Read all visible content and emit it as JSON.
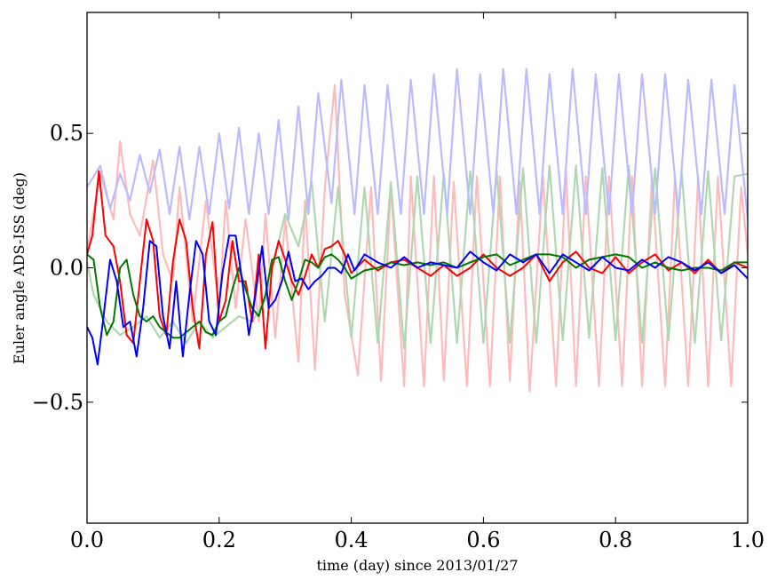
{
  "chart_data": {
    "type": "line",
    "title": "",
    "xlabel": "time (day) since 2013/01/27",
    "ylabel": "Euler angle ADS-ISS (deg)",
    "xlim": [
      0.0,
      1.0
    ],
    "ylim": [
      -0.95,
      0.95
    ],
    "xticks": [
      0.0,
      0.2,
      0.4,
      0.6,
      0.8,
      1.0
    ],
    "xtick_labels": [
      "0.0",
      "0.2",
      "0.4",
      "0.6",
      "0.8",
      "1.0"
    ],
    "yticks": [
      -0.5,
      0.0,
      0.5
    ],
    "ytick_labels": [
      "−0.5",
      "0.0",
      "0.5"
    ],
    "grid": false,
    "legend": "none",
    "series": [
      {
        "color": "#ffbbbb",
        "x": [
          0.0,
          0.02,
          0.04,
          0.05,
          0.065,
          0.08,
          0.1,
          0.115,
          0.13,
          0.14,
          0.16,
          0.18,
          0.2,
          0.21,
          0.225,
          0.24,
          0.26,
          0.27,
          0.285,
          0.3,
          0.32,
          0.33,
          0.345,
          0.36,
          0.375,
          0.39,
          0.41,
          0.43,
          0.445,
          0.46,
          0.48,
          0.49,
          0.51,
          0.525,
          0.54,
          0.555,
          0.575,
          0.59,
          0.61,
          0.625,
          0.64,
          0.655,
          0.67,
          0.69,
          0.71,
          0.725,
          0.74,
          0.755,
          0.775,
          0.79,
          0.81,
          0.825,
          0.84,
          0.855,
          0.875,
          0.89,
          0.91,
          0.925,
          0.94,
          0.955,
          0.975,
          0.99,
          1.0
        ],
        "y": [
          0.06,
          0.35,
          0.18,
          0.47,
          0.2,
          0.12,
          0.4,
          0.05,
          -0.05,
          0.3,
          -0.2,
          0.25,
          -0.15,
          0.25,
          -0.15,
          0.18,
          -0.2,
          0.2,
          -0.26,
          0.18,
          -0.35,
          0.25,
          -0.38,
          0.3,
          0.68,
          -0.1,
          -0.4,
          0.3,
          -0.42,
          0.3,
          -0.44,
          0.34,
          -0.44,
          0.34,
          -0.42,
          0.32,
          -0.44,
          0.34,
          -0.44,
          0.34,
          -0.42,
          0.32,
          -0.46,
          0.34,
          -0.44,
          0.36,
          -0.44,
          0.34,
          -0.44,
          0.34,
          -0.44,
          0.34,
          -0.44,
          0.34,
          -0.44,
          0.34,
          -0.44,
          0.34,
          -0.44,
          0.34,
          -0.44,
          0.3,
          0.05
        ]
      },
      {
        "color": "#b0d8b0",
        "x": [
          0.0,
          0.01,
          0.03,
          0.05,
          0.07,
          0.09,
          0.11,
          0.13,
          0.15,
          0.17,
          0.19,
          0.21,
          0.23,
          0.25,
          0.27,
          0.29,
          0.3,
          0.32,
          0.34,
          0.36,
          0.38,
          0.4,
          0.42,
          0.44,
          0.46,
          0.48,
          0.5,
          0.52,
          0.54,
          0.56,
          0.58,
          0.6,
          0.62,
          0.64,
          0.66,
          0.68,
          0.7,
          0.72,
          0.74,
          0.76,
          0.78,
          0.8,
          0.82,
          0.84,
          0.86,
          0.88,
          0.9,
          0.92,
          0.94,
          0.96,
          0.98,
          1.0
        ],
        "y": [
          0.02,
          -0.1,
          -0.2,
          -0.25,
          -0.22,
          -0.18,
          -0.26,
          -0.2,
          -0.28,
          -0.2,
          -0.26,
          -0.22,
          -0.18,
          -0.2,
          -0.12,
          0.1,
          0.2,
          0.08,
          0.32,
          -0.2,
          0.3,
          -0.26,
          0.3,
          -0.28,
          0.32,
          -0.3,
          0.34,
          -0.28,
          0.35,
          -0.28,
          0.36,
          -0.28,
          0.36,
          -0.28,
          0.37,
          -0.28,
          0.38,
          -0.27,
          0.38,
          -0.26,
          0.37,
          -0.27,
          0.38,
          -0.28,
          0.37,
          -0.27,
          0.36,
          -0.28,
          0.36,
          -0.27,
          0.34,
          0.35
        ]
      },
      {
        "color": "#bbbbff",
        "x": [
          0.0,
          0.02,
          0.035,
          0.05,
          0.065,
          0.08,
          0.095,
          0.11,
          0.125,
          0.14,
          0.155,
          0.17,
          0.185,
          0.2,
          0.215,
          0.23,
          0.245,
          0.26,
          0.275,
          0.29,
          0.305,
          0.32,
          0.335,
          0.35,
          0.37,
          0.385,
          0.405,
          0.42,
          0.44,
          0.455,
          0.475,
          0.49,
          0.51,
          0.525,
          0.545,
          0.56,
          0.58,
          0.595,
          0.615,
          0.63,
          0.65,
          0.665,
          0.685,
          0.7,
          0.72,
          0.735,
          0.755,
          0.77,
          0.79,
          0.805,
          0.825,
          0.84,
          0.86,
          0.875,
          0.895,
          0.91,
          0.93,
          0.945,
          0.965,
          0.98,
          1.0
        ],
        "y": [
          0.3,
          0.38,
          0.22,
          0.35,
          0.25,
          0.42,
          0.28,
          0.44,
          0.2,
          0.45,
          0.18,
          0.45,
          0.2,
          0.5,
          0.22,
          0.52,
          0.2,
          0.5,
          0.2,
          0.55,
          0.18,
          0.6,
          0.2,
          0.65,
          0.24,
          0.7,
          0.2,
          0.68,
          0.2,
          0.68,
          0.2,
          0.7,
          0.2,
          0.72,
          0.2,
          0.74,
          0.2,
          0.72,
          0.2,
          0.74,
          0.2,
          0.74,
          0.2,
          0.72,
          0.2,
          0.74,
          0.2,
          0.72,
          0.2,
          0.72,
          0.2,
          0.72,
          0.2,
          0.72,
          0.2,
          0.7,
          0.2,
          0.7,
          0.2,
          0.68,
          0.18
        ]
      },
      {
        "color": "#ff0000",
        "x": [
          0.0,
          0.008,
          0.018,
          0.028,
          0.04,
          0.05,
          0.06,
          0.07,
          0.08,
          0.09,
          0.1,
          0.11,
          0.12,
          0.13,
          0.14,
          0.15,
          0.16,
          0.17,
          0.18,
          0.19,
          0.2,
          0.21,
          0.22,
          0.23,
          0.24,
          0.25,
          0.26,
          0.27,
          0.28,
          0.29,
          0.3,
          0.31,
          0.32,
          0.33,
          0.34,
          0.35,
          0.36,
          0.37,
          0.38,
          0.39,
          0.4,
          0.42,
          0.44,
          0.46,
          0.48,
          0.5,
          0.52,
          0.54,
          0.56,
          0.58,
          0.6,
          0.62,
          0.64,
          0.66,
          0.68,
          0.7,
          0.72,
          0.74,
          0.76,
          0.78,
          0.8,
          0.82,
          0.84,
          0.86,
          0.88,
          0.9,
          0.92,
          0.94,
          0.96,
          0.98,
          1.0
        ],
        "y": [
          0.05,
          0.12,
          0.36,
          0.12,
          0.08,
          -0.05,
          -0.25,
          -0.28,
          -0.05,
          0.18,
          0.1,
          -0.18,
          -0.25,
          0.02,
          0.18,
          0.1,
          -0.15,
          -0.3,
          0.05,
          0.17,
          -0.2,
          -0.12,
          0.1,
          -0.05,
          -0.05,
          -0.2,
          0.05,
          -0.3,
          0.0,
          0.1,
          0.03,
          -0.05,
          -0.1,
          -0.03,
          0.05,
          0.0,
          0.07,
          0.08,
          0.1,
          0.05,
          -0.02,
          0.03,
          -0.01,
          0.02,
          0.03,
          0.0,
          -0.03,
          0.01,
          -0.03,
          0.0,
          0.05,
          0.0,
          -0.03,
          0.0,
          0.05,
          -0.05,
          0.02,
          0.06,
          0.0,
          -0.02,
          0.04,
          -0.02,
          0.02,
          0.05,
          -0.01,
          0.02,
          -0.02,
          0.03,
          -0.02,
          0.02,
          0.0
        ]
      },
      {
        "color": "#007700",
        "x": [
          0.0,
          0.01,
          0.02,
          0.03,
          0.04,
          0.05,
          0.06,
          0.07,
          0.08,
          0.09,
          0.1,
          0.11,
          0.12,
          0.13,
          0.14,
          0.15,
          0.16,
          0.17,
          0.18,
          0.19,
          0.2,
          0.21,
          0.22,
          0.23,
          0.24,
          0.25,
          0.26,
          0.27,
          0.28,
          0.29,
          0.3,
          0.31,
          0.32,
          0.33,
          0.34,
          0.35,
          0.36,
          0.37,
          0.38,
          0.39,
          0.4,
          0.42,
          0.44,
          0.46,
          0.48,
          0.5,
          0.52,
          0.54,
          0.56,
          0.58,
          0.6,
          0.62,
          0.64,
          0.66,
          0.68,
          0.7,
          0.72,
          0.74,
          0.76,
          0.78,
          0.8,
          0.82,
          0.84,
          0.86,
          0.88,
          0.9,
          0.92,
          0.94,
          0.96,
          0.98,
          1.0
        ],
        "y": [
          0.05,
          0.03,
          -0.15,
          -0.25,
          -0.2,
          0.0,
          0.03,
          -0.1,
          -0.18,
          -0.2,
          -0.18,
          -0.22,
          -0.24,
          -0.26,
          -0.26,
          -0.24,
          -0.22,
          -0.2,
          -0.24,
          -0.25,
          -0.2,
          -0.18,
          -0.08,
          0.0,
          -0.08,
          -0.15,
          -0.18,
          -0.1,
          0.03,
          0.04,
          -0.05,
          -0.12,
          -0.05,
          0.03,
          0.02,
          0.0,
          0.04,
          0.05,
          0.03,
          0.0,
          -0.04,
          -0.01,
          0.0,
          0.02,
          0.01,
          0.02,
          0.01,
          0.02,
          0.0,
          0.02,
          0.04,
          0.05,
          0.01,
          0.03,
          0.05,
          0.05,
          0.04,
          0.0,
          0.03,
          0.04,
          0.05,
          0.04,
          0.0,
          0.02,
          0.0,
          -0.01,
          0.0,
          0.0,
          -0.01,
          0.02,
          0.02
        ]
      },
      {
        "color": "#0000ff",
        "x": [
          0.0,
          0.008,
          0.016,
          0.024,
          0.035,
          0.045,
          0.055,
          0.065,
          0.075,
          0.085,
          0.095,
          0.105,
          0.115,
          0.125,
          0.135,
          0.145,
          0.155,
          0.165,
          0.175,
          0.185,
          0.195,
          0.205,
          0.215,
          0.225,
          0.235,
          0.245,
          0.255,
          0.265,
          0.275,
          0.285,
          0.295,
          0.305,
          0.315,
          0.325,
          0.335,
          0.345,
          0.355,
          0.365,
          0.375,
          0.385,
          0.395,
          0.405,
          0.42,
          0.44,
          0.46,
          0.48,
          0.5,
          0.52,
          0.54,
          0.56,
          0.58,
          0.6,
          0.62,
          0.64,
          0.66,
          0.68,
          0.7,
          0.72,
          0.74,
          0.76,
          0.78,
          0.8,
          0.82,
          0.84,
          0.86,
          0.88,
          0.9,
          0.92,
          0.94,
          0.96,
          0.98,
          1.0
        ],
        "y": [
          -0.22,
          -0.26,
          -0.36,
          -0.2,
          0.03,
          -0.05,
          -0.22,
          -0.2,
          -0.33,
          -0.15,
          0.1,
          0.08,
          -0.18,
          -0.3,
          -0.05,
          -0.33,
          -0.1,
          0.1,
          0.05,
          -0.2,
          -0.25,
          -0.02,
          0.12,
          0.12,
          -0.05,
          -0.25,
          -0.1,
          0.08,
          -0.15,
          -0.12,
          -0.05,
          0.06,
          -0.05,
          -0.04,
          -0.08,
          -0.05,
          -0.03,
          0.0,
          0.0,
          -0.02,
          0.05,
          -0.01,
          0.05,
          0.02,
          0.0,
          0.04,
          0.0,
          0.02,
          0.01,
          0.0,
          0.06,
          0.02,
          -0.01,
          0.05,
          0.02,
          0.05,
          -0.02,
          0.05,
          0.02,
          -0.01,
          0.04,
          0.0,
          -0.01,
          0.03,
          0.0,
          0.04,
          0.02,
          -0.01,
          0.02,
          -0.02,
          0.01,
          -0.04
        ]
      }
    ]
  }
}
